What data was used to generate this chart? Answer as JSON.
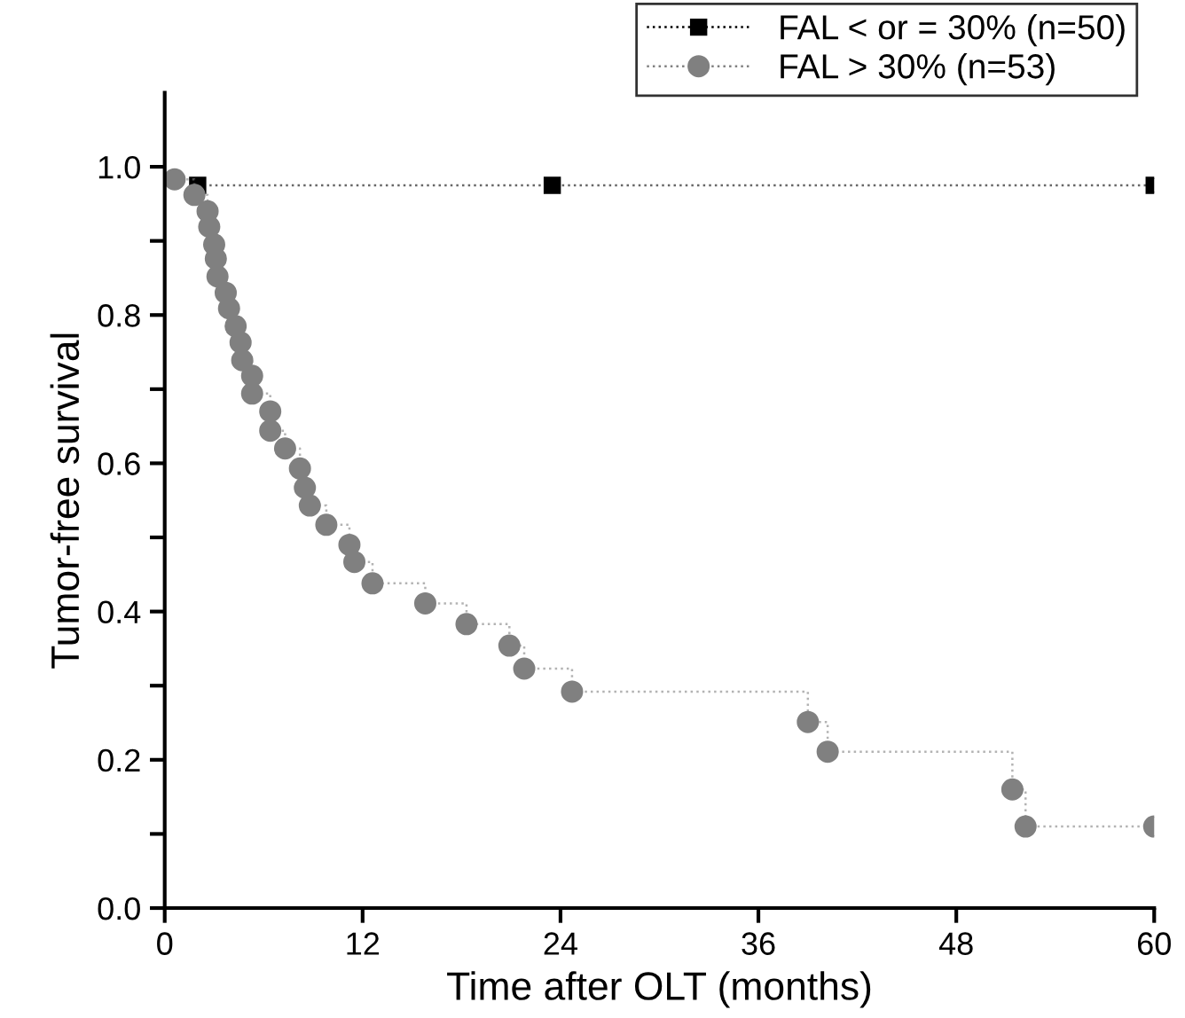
{
  "chart_data": {
    "type": "step",
    "xlabel": "Time after OLT (months)",
    "ylabel": "Tumor-free survival",
    "xlim": [
      0,
      60
    ],
    "xticks": [
      0,
      12,
      24,
      36,
      48,
      60
    ],
    "ylim": [
      0,
      1.1
    ],
    "yticks": [
      {
        "value": 0,
        "label": "0.0"
      },
      {
        "value": 0.1,
        "label": null
      },
      0.2,
      {
        "value": 0.3,
        "label": null
      },
      0.4,
      {
        "value": 0.5,
        "label": null
      },
      0.6,
      {
        "value": 0.7,
        "label": null
      },
      0.8,
      {
        "value": 0.9,
        "label": null
      },
      {
        "value": 1,
        "label": "1.0"
      }
    ],
    "grid": false,
    "legend": "top right",
    "line_style": "dotted",
    "series": [
      {
        "name": "FAL < or = 30% (n=50)",
        "color": "#000000",
        "marker": "square",
        "x": [
          2,
          23.5,
          60
        ],
        "values": [
          0.975,
          0.975,
          0.975
        ]
      },
      {
        "name": "FAL > 30% (n=53)",
        "color": "#808080",
        "marker": "circle",
        "x": [
          0.6,
          1.8,
          2.6,
          2.7,
          3.0,
          3.1,
          3.2,
          3.7,
          3.9,
          4.3,
          4.6,
          4.7,
          5.3,
          5.3,
          6.4,
          6.4,
          7.3,
          8.2,
          8.5,
          8.8,
          9.8,
          11.2,
          11.5,
          12.6,
          15.8,
          18.3,
          20.9,
          21.8,
          24.7,
          39.0,
          40.2,
          51.4,
          52.2,
          60
        ],
        "values": [
          0.983,
          0.962,
          0.94,
          0.919,
          0.895,
          0.876,
          0.852,
          0.83,
          0.809,
          0.785,
          0.763,
          0.739,
          0.718,
          0.694,
          0.67,
          0.644,
          0.62,
          0.593,
          0.567,
          0.543,
          0.517,
          0.49,
          0.467,
          0.438,
          0.411,
          0.383,
          0.354,
          0.323,
          0.292,
          0.251,
          0.211,
          0.16,
          0.11,
          0.11
        ]
      }
    ]
  }
}
